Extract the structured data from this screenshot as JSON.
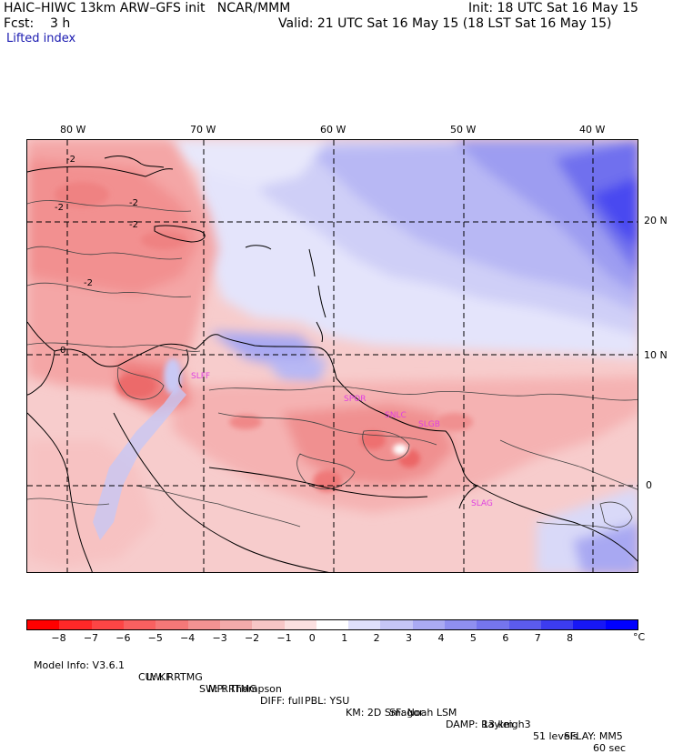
{
  "header": {
    "line1_left": "HAIC–HIWC 13km ARW–GFS init   NCAR/MMM",
    "line1_right": "Init: 18 UTC Sat 16 May 15",
    "line2_left": "Fcst:    3 h",
    "line2_right": "Valid: 21 UTC Sat 16 May 15 (18 LST Sat 16 May 15)",
    "field_name": "Lifted index"
  },
  "map": {
    "lon_labels": [
      "80 W",
      "70 W",
      "60 W",
      "50 W",
      "40 W"
    ],
    "lat_labels": [
      "20 N",
      "10 N",
      "0"
    ],
    "contour_labels": [
      "-2",
      "-2",
      "-2",
      "-2",
      "0",
      "-2"
    ],
    "city_labels": [
      "SPOR",
      "SNLC",
      "SLGB",
      "SLAG",
      "SLFF"
    ]
  },
  "colorbar": {
    "colors": [
      "#ff0000",
      "#ff2828",
      "#fd4545",
      "#f96060",
      "#f57878",
      "#f29292",
      "#f2aaaa",
      "#f7c6c6",
      "#fbe0e0",
      "#ffffff",
      "#dfe0fb",
      "#c6c6f6",
      "#aaaaf3",
      "#8f8ff0",
      "#7575ee",
      "#5b5bee",
      "#3c3cf0",
      "#1717f5",
      "#0000ff"
    ],
    "tick_labels": [
      "−8",
      "−7",
      "−6",
      "−5",
      "−4",
      "−3",
      "−2",
      "−1",
      "0",
      "1",
      "2",
      "3",
      "4",
      "5",
      "6",
      "7",
      "8"
    ],
    "units": "°C"
  },
  "footer": {
    "line1": [
      "Model Info: V3.6.1",
      "CU: KF",
      "MP: Thompson",
      "PBL: YSU",
      "SF: Noah LSM",
      "13 km",
      "51 levels",
      "60 sec"
    ],
    "line2": [
      "LW: RRTMG",
      "SW: RRTMG",
      "DIFF: full",
      "KM: 2D Smagor",
      "DAMP: Rayleigh3",
      "SFLAY: MM5"
    ]
  }
}
